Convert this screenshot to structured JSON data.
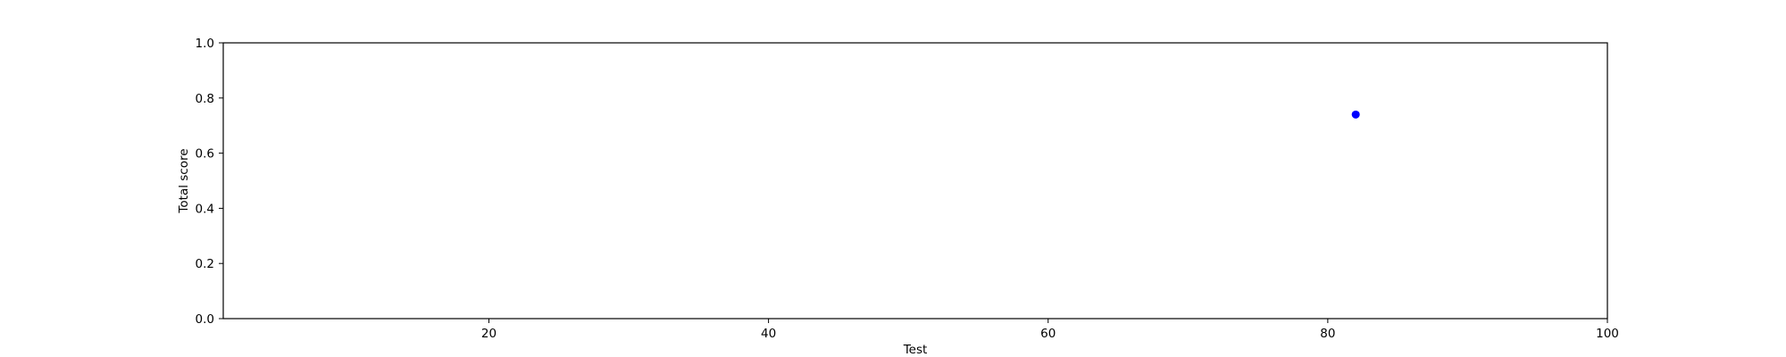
{
  "chart_data": {
    "type": "scatter",
    "title": "",
    "xlabel": "Test",
    "ylabel": "Total score",
    "xlim": [
      1,
      100
    ],
    "ylim": [
      0,
      1.0
    ],
    "xticks": [
      {
        "value": 20,
        "label": "20"
      },
      {
        "value": 40,
        "label": "40"
      },
      {
        "value": 60,
        "label": "60"
      },
      {
        "value": 80,
        "label": "80"
      },
      {
        "value": 100,
        "label": "100"
      }
    ],
    "yticks": [
      {
        "value": 0.0,
        "label": "0.0"
      },
      {
        "value": 0.2,
        "label": "0.2"
      },
      {
        "value": 0.4,
        "label": "0.4"
      },
      {
        "value": 0.6,
        "label": "0.6"
      },
      {
        "value": 0.8,
        "label": "0.8"
      },
      {
        "value": 1.0,
        "label": "1.0"
      }
    ],
    "grid": false,
    "legend": "none",
    "series": [
      {
        "color": "#0000ff",
        "points": [
          {
            "x": 82,
            "y": 0.74
          }
        ]
      }
    ]
  }
}
